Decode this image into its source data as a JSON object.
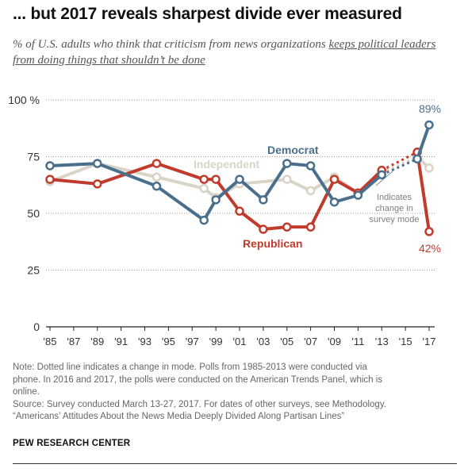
{
  "title": "... but 2017 reveals sharpest divide ever measured",
  "subtitle": {
    "part1": "% of U.S. adults who think that criticism from news organizations ",
    "part2": "keeps political leaders from doing things that shouldn’t be done"
  },
  "colors": {
    "democrat": "#4a6f8c",
    "republican": "#c13b2d",
    "independent": "#d9d4c7",
    "grid": "#999999",
    "axis": "#222222",
    "annotation": "#7f7f7f"
  },
  "chart_data": {
    "type": "line",
    "title": "... but 2017 reveals sharpest divide ever measured",
    "ylim": [
      0,
      100
    ],
    "xlim": [
      1985,
      2017
    ],
    "y_ticks": [
      {
        "value": 0,
        "label": "0"
      },
      {
        "value": 25,
        "label": "25"
      },
      {
        "value": 50,
        "label": "50"
      },
      {
        "value": 75,
        "label": "75"
      },
      {
        "value": 100,
        "label": "100 %"
      }
    ],
    "x_ticks": [
      {
        "value": 1985,
        "label": "'85"
      },
      {
        "value": 1987,
        "label": "'87"
      },
      {
        "value": 1989,
        "label": "'89"
      },
      {
        "value": 1991,
        "label": "'91"
      },
      {
        "value": 1993,
        "label": "'93"
      },
      {
        "value": 1995,
        "label": "'95"
      },
      {
        "value": 1997,
        "label": "'97"
      },
      {
        "value": 1999,
        "label": "'99"
      },
      {
        "value": 2001,
        "label": "'01"
      },
      {
        "value": 2003,
        "label": "'03"
      },
      {
        "value": 2005,
        "label": "'05"
      },
      {
        "value": 2007,
        "label": "'07"
      },
      {
        "value": 2009,
        "label": "'09"
      },
      {
        "value": 2011,
        "label": "'11"
      },
      {
        "value": 2013,
        "label": "'13"
      },
      {
        "value": 2015,
        "label": "'15"
      },
      {
        "value": 2017,
        "label": "'17"
      }
    ],
    "mode_change_after": 2013,
    "series": [
      {
        "key": "independent",
        "name": "Independent",
        "x": [
          1985,
          1989,
          1994,
          1998,
          1999,
          2001,
          2005,
          2007,
          2009,
          2011,
          2013,
          2016,
          2017
        ],
        "y": [
          64,
          72,
          66,
          61,
          57,
          63,
          65,
          60,
          66,
          59,
          68,
          75,
          70
        ]
      },
      {
        "key": "republican",
        "name": "Republican",
        "x": [
          1985,
          1989,
          1994,
          1998,
          1999,
          2001,
          2003,
          2005,
          2007,
          2009,
          2011,
          2013,
          2016,
          2017
        ],
        "y": [
          65,
          63,
          72,
          65,
          65,
          51,
          43,
          44,
          44,
          65,
          59,
          69,
          77,
          42
        ]
      },
      {
        "key": "democrat",
        "name": "Democrat",
        "x": [
          1985,
          1989,
          1994,
          1998,
          1999,
          2001,
          2003,
          2005,
          2007,
          2009,
          2011,
          2013,
          2016,
          2017
        ],
        "y": [
          71,
          72,
          62,
          47,
          56,
          65,
          56,
          72,
          71,
          55,
          58,
          67,
          74,
          89
        ]
      }
    ],
    "annotations": {
      "label_89": "89%",
      "label_42": "42%",
      "mode_note": [
        "Indicates",
        "change in",
        "survey mode"
      ]
    }
  },
  "note": {
    "line1": "Note: Dotted line indicates a change in mode. Polls from 1985-2013 were conducted via",
    "line2": "phone. In 2016 and 2017, the polls were conducted on the American Trends Panel, which is",
    "line3": "online.",
    "line4": "Source: Survey conducted March 13-27, 2017. For dates of other surveys, see Methodology.",
    "line5": "“Americans’ Attitudes About the News Media Deeply Divided Along Partisan Lines”"
  },
  "source_org": "PEW RESEARCH CENTER"
}
